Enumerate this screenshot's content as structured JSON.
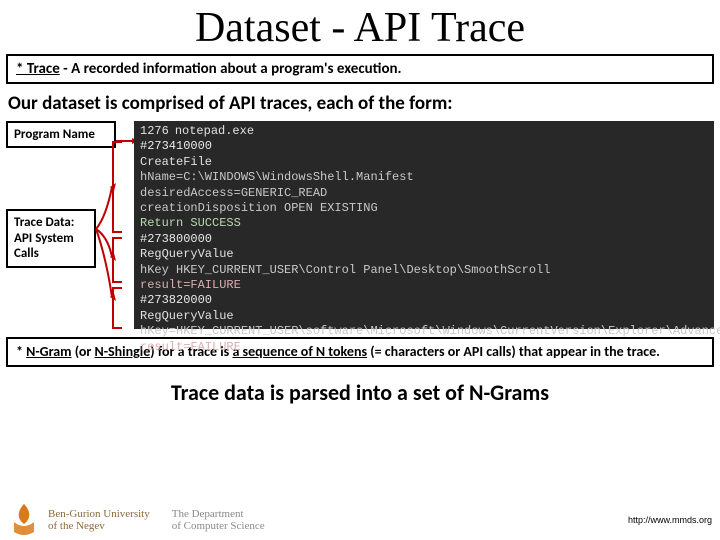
{
  "title": "Dataset - API Trace",
  "def1_term": "* Trace",
  "def1_rest": " -  A recorded information about a program's execution.",
  "subheading": "Our dataset is comprised of API traces, each of the form:",
  "label_prog": "Program Name",
  "label_data": "Trace Data: API System Calls",
  "code": {
    "bg": "#282828",
    "fg": "#cccccc",
    "lines": [
      {
        "lno": "1276",
        "txt": "notepad.exe",
        "cls": "fname"
      },
      {
        "txt": "#273410000",
        "cls": "hash"
      },
      {
        "txt": "CreateFile",
        "cls": "fname"
      },
      {
        "txt": "hName=C:\\WINDOWS\\WindowsShell.Manifest",
        "cls": "kv"
      },
      {
        "txt": "desiredAccess=GENERIC_READ",
        "cls": "kv"
      },
      {
        "txt": "creationDisposition OPEN EXISTING",
        "cls": "kv"
      },
      {
        "txt": "Return SUCCESS",
        "cls": "res-ok"
      },
      {
        "txt": "#273800000",
        "cls": "hash"
      },
      {
        "txt": "RegQueryValue",
        "cls": "fname"
      },
      {
        "txt": "hKey HKEY_CURRENT_USER\\Control Panel\\Desktop\\SmoothScroll",
        "cls": "kv"
      },
      {
        "txt": "result=FAILURE",
        "cls": "res-fail"
      },
      {
        "txt": "#273820000",
        "cls": "hash"
      },
      {
        "txt": "RegQueryValue",
        "cls": "fname"
      },
      {
        "txt": "hKey=HKEY_CURRENT_USER\\software\\Microsoft\\Windows\\CurrentVersion\\Explorer\\Advanced\\EnableBalloonTips",
        "cls": "kv"
      },
      {
        "txt": "result=FAILURE",
        "cls": "res-fail"
      }
    ]
  },
  "def2_a": "* ",
  "def2_term1": "N-Gram",
  "def2_mid": " (or ",
  "def2_term2": "N-Shingle",
  "def2_rest1": ") for a trace is ",
  "def2_rest2": "a sequence of N tokens",
  "def2_rest3": " (= characters or API calls) that appear in the trace.",
  "final": "Trace data is parsed into a set of N-Grams",
  "footer": {
    "bgu1": "Ben-Gurion University",
    "bgu2": "of the Negev",
    "dept1": "The Department",
    "dept2": "of Computer Science",
    "url": "http://www.mmds.org"
  },
  "colors": {
    "arrow": "#c00000",
    "border": "#000000"
  }
}
